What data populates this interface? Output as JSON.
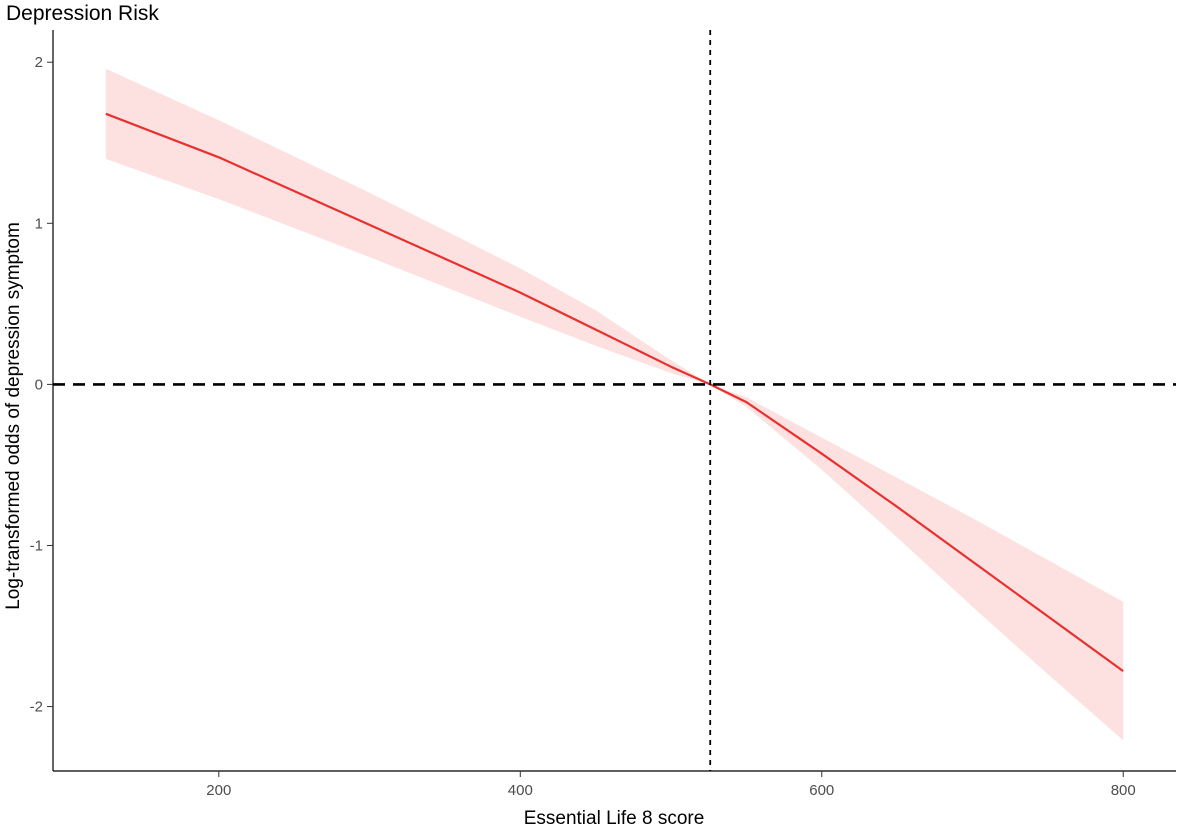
{
  "chart_data": {
    "type": "line",
    "title": "Depression Risk",
    "xlabel": "Essential Life 8 score",
    "ylabel": "Log-transformed odds of depression symptom",
    "xlim": [
      90,
      835
    ],
    "ylim": [
      -2.4,
      2.2
    ],
    "x_ticks": [
      200,
      400,
      600,
      800
    ],
    "y_ticks": [
      -2,
      -1,
      0,
      1,
      2
    ],
    "grid": false,
    "legend": "none",
    "reference_lines": {
      "vertical_x": 526,
      "horizontal_y": 0
    },
    "colors": {
      "line": "#e8312f",
      "band": "#fde1e1",
      "reference": "#000000",
      "axis": "#000000"
    },
    "series": [
      {
        "x": [
          125,
          200,
          300,
          400,
          450,
          500,
          526,
          550,
          600,
          650,
          700,
          750,
          800
        ],
        "y": [
          1.68,
          1.41,
          0.99,
          0.57,
          0.34,
          0.11,
          0.0,
          -0.11,
          -0.43,
          -0.76,
          -1.1,
          -1.44,
          -1.78
        ],
        "lower": [
          1.4,
          1.15,
          0.79,
          0.42,
          0.24,
          0.07,
          0.0,
          -0.14,
          -0.53,
          -0.95,
          -1.38,
          -1.8,
          -2.21
        ],
        "upper": [
          1.96,
          1.64,
          1.19,
          0.72,
          0.46,
          0.15,
          0.0,
          -0.08,
          -0.33,
          -0.58,
          -0.83,
          -1.09,
          -1.35
        ]
      }
    ]
  }
}
